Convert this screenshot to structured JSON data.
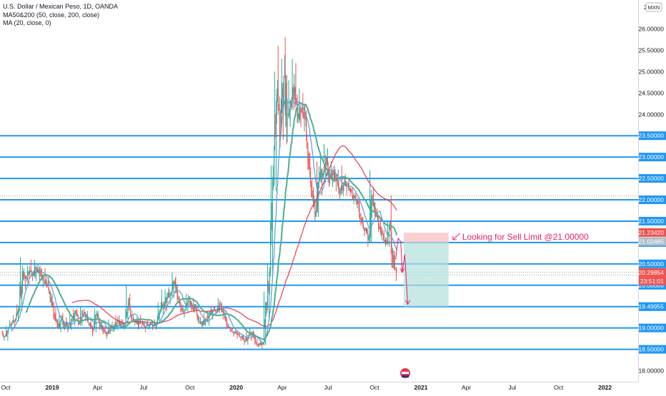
{
  "header": {
    "symbol_line": "U.S. Dollar / Mexican Peso, 1D, OANDA",
    "indicator_1": "MA50&200 (50, close, 200, close)",
    "indicator_2": "MA (20, close, 0)"
  },
  "currency_badge": "MXN",
  "annotation": "Looking for Sell Limit @21.00000",
  "colors": {
    "up": "#26a69a",
    "down": "#ef5350",
    "ma50": "#4caf8f",
    "ma200": "#e53950",
    "ma20": "#5b9bd5",
    "hline": "#2196f3",
    "annotation": "#e91e63",
    "target_zone": "#b2dfdb",
    "stop_zone": "#f8c4c4"
  },
  "chart_data": {
    "type": "candlestick",
    "y_scale": "linear",
    "ylim": [
      17.85,
      26.45
    ],
    "y_ticks": [
      {
        "value": 26.0,
        "label": "26.00000"
      },
      {
        "value": 25.5,
        "label": "25.50000"
      },
      {
        "value": 25.0,
        "label": "25.00000"
      },
      {
        "value": 24.5,
        "label": "24.50000"
      },
      {
        "value": 24.0,
        "label": "24.00000"
      },
      {
        "value": 23.5,
        "label": "23.50000"
      },
      {
        "value": 23.0,
        "label": "23.00000"
      },
      {
        "value": 22.5,
        "label": "22.50000"
      },
      {
        "value": 22.0,
        "label": "22.00000"
      },
      {
        "value": 21.5,
        "label": "21.50000"
      },
      {
        "value": 21.0,
        "label": "21.00000"
      },
      {
        "value": 20.5,
        "label": "20.50000"
      },
      {
        "value": 20.0,
        "label": "20.00000"
      },
      {
        "value": 19.5,
        "label": "19.50000"
      },
      {
        "value": 19.0,
        "label": "19.00000"
      },
      {
        "value": 18.5,
        "label": "18.50000"
      },
      {
        "value": 18.0,
        "label": "18.00000"
      }
    ],
    "top_tick_partial": "2",
    "x_ticks": [
      {
        "date": "2018-10-01",
        "label": "Oct"
      },
      {
        "date": "2019-01-01",
        "label": "2019"
      },
      {
        "date": "2019-04-01",
        "label": "Apr"
      },
      {
        "date": "2019-07-01",
        "label": "Jul"
      },
      {
        "date": "2019-10-01",
        "label": "Oct"
      },
      {
        "date": "2020-01-01",
        "label": "2020"
      },
      {
        "date": "2020-04-01",
        "label": "Apr"
      },
      {
        "date": "2020-07-01",
        "label": "Jul"
      },
      {
        "date": "2020-10-01",
        "label": "Oct"
      },
      {
        "date": "2021-01-01",
        "label": "2021"
      },
      {
        "date": "2021-04-01",
        "label": "Apr"
      },
      {
        "date": "2021-07-01",
        "label": "Jul"
      },
      {
        "date": "2021-10-01",
        "label": "Oct"
      },
      {
        "date": "2022-01-01",
        "label": "2022"
      }
    ],
    "horizontal_levels": [
      23.5,
      23.0,
      22.5,
      22.0,
      21.5,
      21.0,
      20.5,
      20.0,
      19.5,
      19.0,
      18.5
    ],
    "dotted_levels": [
      22.09,
      20.3,
      20.24
    ],
    "price_labels": [
      {
        "value": 21.2342,
        "label": "21.23420",
        "color": "#ef5350",
        "text_color": "#ffffff"
      },
      {
        "value": 21.02485,
        "label": "21.02485",
        "color": "#b0bec5",
        "text_color": "#ffffff"
      },
      {
        "value": 20.29854,
        "label": "20.29854",
        "color": "#ef5350",
        "text_color": "#ffffff"
      },
      {
        "value": 20.1,
        "label": "23:51:01",
        "color": "#ef5350",
        "text_color": "#ffffff"
      },
      {
        "value": 19.49955,
        "label": "19.49955",
        "color": "#2196f3",
        "text_color": "#ffffff"
      }
    ],
    "position": {
      "start_date": "2020-11-28",
      "end_date": "2021-02-25",
      "entry": 21.0,
      "stop": 21.23,
      "target": 19.5
    },
    "projection": [
      {
        "date": "2020-11-12",
        "value": 20.6
      },
      {
        "date": "2020-11-17",
        "value": 21.1
      },
      {
        "date": "2020-11-22",
        "value": 21.02
      },
      {
        "date": "2020-11-25",
        "value": 20.3
      },
      {
        "date": "2020-11-30",
        "value": 20.72
      },
      {
        "date": "2020-12-06",
        "value": 19.55
      }
    ],
    "ohlc_daily": [
      [
        "2018-09-24",
        18.9,
        18.94,
        18.7,
        18.8
      ],
      [
        "2018-10-01",
        18.8,
        19.05,
        18.7,
        19.0
      ],
      [
        "2018-10-08",
        19.0,
        19.18,
        18.95,
        19.1
      ],
      [
        "2018-10-15",
        19.1,
        19.3,
        19.0,
        19.2
      ],
      [
        "2018-10-22",
        19.2,
        19.55,
        19.15,
        19.5
      ],
      [
        "2018-10-29",
        19.5,
        20.65,
        19.4,
        20.3
      ],
      [
        "2018-11-05",
        20.3,
        20.4,
        19.9,
        20.15
      ],
      [
        "2018-11-12",
        20.15,
        20.45,
        20.0,
        20.35
      ],
      [
        "2018-11-19",
        20.35,
        20.6,
        20.1,
        20.3
      ],
      [
        "2018-11-26",
        20.3,
        20.6,
        20.1,
        20.4
      ],
      [
        "2018-12-03",
        20.4,
        20.5,
        20.05,
        20.3
      ],
      [
        "2018-12-10",
        20.3,
        20.4,
        19.95,
        20.1
      ],
      [
        "2018-12-17",
        20.1,
        20.4,
        19.95,
        20.0
      ],
      [
        "2018-12-24",
        20.0,
        20.2,
        19.6,
        19.65
      ],
      [
        "2018-12-31",
        19.65,
        19.8,
        19.2,
        19.3
      ],
      [
        "2019-01-07",
        19.3,
        19.5,
        19.0,
        19.05
      ],
      [
        "2019-01-14",
        19.05,
        19.3,
        18.9,
        19.2
      ],
      [
        "2019-01-21",
        19.2,
        19.35,
        18.95,
        19.05
      ],
      [
        "2019-01-28",
        19.05,
        19.25,
        18.9,
        19.05
      ],
      [
        "2019-02-04",
        19.05,
        19.3,
        18.95,
        19.15
      ],
      [
        "2019-02-11",
        19.15,
        19.45,
        19.05,
        19.4
      ],
      [
        "2019-02-18",
        19.4,
        19.45,
        19.05,
        19.15
      ],
      [
        "2019-02-25",
        19.15,
        19.5,
        19.05,
        19.3
      ],
      [
        "2019-03-04",
        19.3,
        19.45,
        19.15,
        19.3
      ],
      [
        "2019-03-11",
        19.3,
        19.4,
        19.05,
        19.1
      ],
      [
        "2019-03-18",
        19.1,
        19.2,
        18.8,
        18.95
      ],
      [
        "2019-03-25",
        18.95,
        19.45,
        18.9,
        19.35
      ],
      [
        "2019-04-01",
        19.35,
        19.4,
        18.95,
        19.05
      ],
      [
        "2019-04-08",
        19.05,
        19.15,
        18.85,
        18.95
      ],
      [
        "2019-04-15",
        18.95,
        19.05,
        18.75,
        18.9
      ],
      [
        "2019-04-22",
        18.9,
        19.2,
        18.85,
        19.0
      ],
      [
        "2019-04-29",
        19.0,
        19.15,
        18.9,
        19.05
      ],
      [
        "2019-05-06",
        19.05,
        19.3,
        18.95,
        19.15
      ],
      [
        "2019-05-13",
        19.15,
        19.3,
        19.0,
        19.1
      ],
      [
        "2019-05-20",
        19.1,
        19.2,
        18.95,
        19.05
      ],
      [
        "2019-05-27",
        19.05,
        20.0,
        19.05,
        19.7
      ],
      [
        "2019-06-03",
        19.7,
        19.8,
        19.15,
        19.2
      ],
      [
        "2019-06-10",
        19.2,
        19.3,
        19.05,
        19.15
      ],
      [
        "2019-06-17",
        19.15,
        19.25,
        18.95,
        19.1
      ],
      [
        "2019-06-24",
        19.1,
        19.3,
        19.0,
        19.1
      ],
      [
        "2019-07-01",
        19.1,
        19.15,
        18.9,
        19.05
      ],
      [
        "2019-07-08",
        19.05,
        19.2,
        18.95,
        19.1
      ],
      [
        "2019-07-15",
        19.1,
        19.15,
        18.95,
        19.05
      ],
      [
        "2019-07-22",
        19.05,
        19.2,
        18.95,
        19.1
      ],
      [
        "2019-07-29",
        19.1,
        19.6,
        19.1,
        19.45
      ],
      [
        "2019-08-05",
        19.45,
        19.9,
        19.3,
        19.55
      ],
      [
        "2019-08-12",
        19.55,
        19.9,
        19.4,
        19.75
      ],
      [
        "2019-08-19",
        19.75,
        19.95,
        19.55,
        19.8
      ],
      [
        "2019-08-26",
        19.8,
        20.3,
        19.7,
        20.1
      ],
      [
        "2019-09-02",
        20.1,
        20.2,
        19.6,
        19.7
      ],
      [
        "2019-09-09",
        19.7,
        19.75,
        19.35,
        19.45
      ],
      [
        "2019-09-16",
        19.45,
        19.55,
        19.25,
        19.4
      ],
      [
        "2019-09-23",
        19.4,
        19.8,
        19.35,
        19.7
      ],
      [
        "2019-09-30",
        19.7,
        19.75,
        19.4,
        19.5
      ],
      [
        "2019-10-07",
        19.5,
        19.7,
        19.35,
        19.45
      ],
      [
        "2019-10-14",
        19.45,
        19.5,
        19.1,
        19.15
      ],
      [
        "2019-10-21",
        19.15,
        19.25,
        19.0,
        19.1
      ],
      [
        "2019-10-28",
        19.1,
        19.35,
        19.05,
        19.2
      ],
      [
        "2019-11-04",
        19.2,
        19.4,
        19.05,
        19.3
      ],
      [
        "2019-11-11",
        19.3,
        19.5,
        19.2,
        19.45
      ],
      [
        "2019-11-18",
        19.45,
        19.5,
        19.3,
        19.4
      ],
      [
        "2019-11-25",
        19.4,
        19.7,
        19.35,
        19.55
      ],
      [
        "2019-12-02",
        19.55,
        19.6,
        19.2,
        19.3
      ],
      [
        "2019-12-09",
        19.3,
        19.4,
        19.0,
        19.05
      ],
      [
        "2019-12-16",
        19.05,
        19.1,
        18.9,
        18.95
      ],
      [
        "2019-12-23",
        18.95,
        19.0,
        18.8,
        18.9
      ],
      [
        "2019-12-30",
        18.9,
        18.95,
        18.75,
        18.85
      ],
      [
        "2020-01-06",
        18.85,
        18.9,
        18.7,
        18.8
      ],
      [
        "2020-01-13",
        18.8,
        18.85,
        18.6,
        18.7
      ],
      [
        "2020-01-20",
        18.7,
        18.9,
        18.6,
        18.8
      ],
      [
        "2020-01-27",
        18.8,
        19.0,
        18.7,
        18.9
      ],
      [
        "2020-02-03",
        18.9,
        18.95,
        18.6,
        18.65
      ],
      [
        "2020-02-10",
        18.65,
        18.75,
        18.55,
        18.6
      ],
      [
        "2020-02-17",
        18.6,
        18.7,
        18.52,
        18.65
      ],
      [
        "2020-02-24",
        18.65,
        19.85,
        18.6,
        19.6
      ],
      [
        "2020-03-02",
        19.6,
        20.5,
        19.2,
        20.3
      ],
      [
        "2020-03-09",
        20.3,
        22.8,
        20.2,
        22.4
      ],
      [
        "2020-03-16",
        22.4,
        25.0,
        22.2,
        24.6
      ],
      [
        "2020-03-23",
        24.6,
        25.6,
        23.2,
        23.8
      ],
      [
        "2020-03-30",
        23.8,
        25.3,
        23.4,
        24.9
      ],
      [
        "2020-04-06",
        24.9,
        25.8,
        23.3,
        24.0
      ],
      [
        "2020-04-13",
        24.0,
        24.8,
        23.7,
        24.3
      ],
      [
        "2020-04-20",
        24.3,
        25.3,
        24.1,
        24.6
      ],
      [
        "2020-04-27",
        24.6,
        25.2,
        23.8,
        24.0
      ],
      [
        "2020-05-04",
        24.0,
        24.6,
        23.7,
        24.1
      ],
      [
        "2020-05-11",
        24.1,
        24.5,
        23.6,
        23.9
      ],
      [
        "2020-05-18",
        23.9,
        24.1,
        22.7,
        22.9
      ],
      [
        "2020-05-25",
        22.9,
        23.1,
        22.05,
        22.2
      ],
      [
        "2020-06-01",
        22.2,
        22.3,
        21.5,
        21.7
      ],
      [
        "2020-06-08",
        21.7,
        22.9,
        21.6,
        22.5
      ],
      [
        "2020-06-15",
        22.5,
        23.0,
        22.1,
        22.6
      ],
      [
        "2020-06-22",
        22.6,
        23.3,
        22.4,
        23.0
      ],
      [
        "2020-06-29",
        23.0,
        23.2,
        22.3,
        22.5
      ],
      [
        "2020-07-06",
        22.5,
        22.9,
        22.3,
        22.6
      ],
      [
        "2020-07-13",
        22.6,
        22.8,
        22.2,
        22.5
      ],
      [
        "2020-07-20",
        22.5,
        22.7,
        22.0,
        22.2
      ],
      [
        "2020-07-27",
        22.2,
        22.8,
        22.1,
        22.4
      ],
      [
        "2020-08-03",
        22.4,
        22.6,
        22.1,
        22.35
      ],
      [
        "2020-08-10",
        22.35,
        22.5,
        22.1,
        22.2
      ],
      [
        "2020-08-17",
        22.2,
        22.3,
        21.9,
        22.05
      ],
      [
        "2020-08-24",
        22.05,
        22.2,
        21.8,
        21.9
      ],
      [
        "2020-08-31",
        21.9,
        22.0,
        21.4,
        21.5
      ],
      [
        "2020-09-07",
        21.5,
        21.6,
        21.15,
        21.3
      ],
      [
        "2020-09-14",
        21.3,
        21.35,
        20.9,
        21.1
      ],
      [
        "2020-09-21",
        21.1,
        22.7,
        21.0,
        22.1
      ],
      [
        "2020-09-28",
        22.1,
        22.3,
        21.6,
        21.7
      ],
      [
        "2020-10-05",
        21.7,
        21.8,
        21.25,
        21.35
      ],
      [
        "2020-10-12",
        21.35,
        21.6,
        21.05,
        21.2
      ],
      [
        "2020-10-19",
        21.2,
        21.3,
        20.9,
        21.0
      ],
      [
        "2020-10-26",
        21.0,
        21.5,
        20.9,
        21.4
      ],
      [
        "2020-11-02",
        21.4,
        22.1,
        20.4,
        20.6
      ],
      [
        "2020-11-09",
        20.6,
        20.8,
        20.1,
        20.3
      ]
    ]
  }
}
